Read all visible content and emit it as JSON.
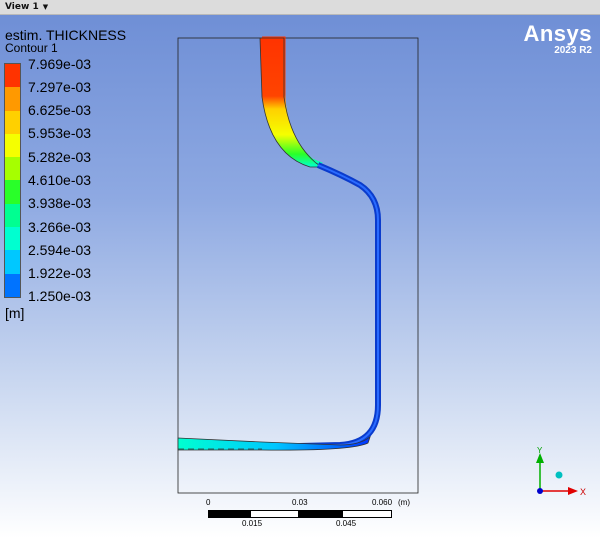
{
  "tab": {
    "label": "View 1",
    "caret": "▼"
  },
  "legend": {
    "title": "estim. THICKNESS",
    "subtitle": "Contour 1",
    "unit": "[m]",
    "labels": [
      "7.969e-03",
      "7.297e-03",
      "6.625e-03",
      "5.953e-03",
      "5.282e-03",
      "4.610e-03",
      "3.938e-03",
      "3.266e-03",
      "2.594e-03",
      "1.922e-03",
      "1.250e-03"
    ],
    "colors": [
      "#ff3300",
      "#ff9900",
      "#ffd000",
      "#f5ff00",
      "#a6ff00",
      "#29ff29",
      "#00ff91",
      "#00ffd0",
      "#00c8ff",
      "#0073ff",
      "#0033ff"
    ]
  },
  "brand": {
    "name": "Ansys",
    "version": "2023 R2"
  },
  "scale": {
    "top_labels": [
      "0",
      "0.03",
      "0.060"
    ],
    "unit": "(m)",
    "bottom_labels": [
      "0.015",
      "0.045"
    ]
  },
  "triad": {
    "y_label": "Y",
    "x_label": "X"
  }
}
